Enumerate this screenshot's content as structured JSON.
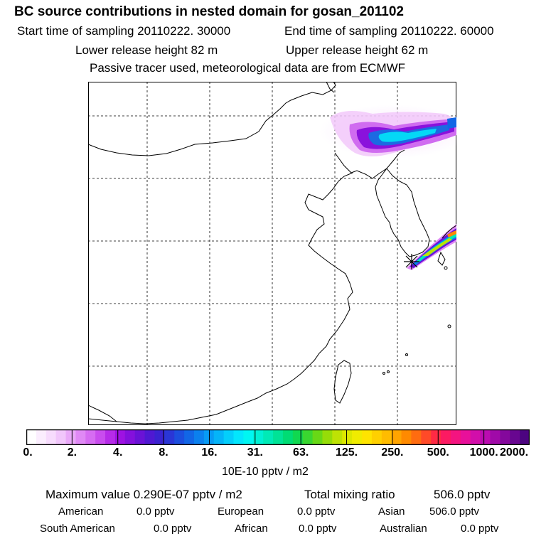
{
  "header": {
    "title": "BC  source contributions in nested domain for gosan_201102",
    "start_time": "Start time of sampling 20110222. 30000",
    "end_time": "End time of sampling 20110222. 60000",
    "lower_release": "Lower release height   82 m",
    "upper_release": "Upper release height   62 m",
    "tracer_note": "Passive tracer used, meteorological data are from ECMWF"
  },
  "colorbar": {
    "labels": [
      "0.",
      "2.",
      "4.",
      "8.",
      "16.",
      "31.",
      "63.",
      "125.",
      "250.",
      "500.",
      "1000.",
      "2000."
    ],
    "colors": [
      "#ffffff",
      "#fbeefe",
      "#f7dcfd",
      "#f1c6fb",
      "#e9a8f8",
      "#e089f5",
      "#d66cf2",
      "#c94cee",
      "#b62be8",
      "#9e12e2",
      "#8410dc",
      "#6a12d6",
      "#4f18d2",
      "#3a22d0",
      "#2a36d6",
      "#1c4ede",
      "#1266e6",
      "#0b80ee",
      "#079af4",
      "#05b4f8",
      "#04cefb",
      "#03e6fd",
      "#00f6f2",
      "#00f0d4",
      "#00eab6",
      "#00e396",
      "#00dc74",
      "#10d850",
      "#3ad630",
      "#68d816",
      "#96dc08",
      "#bee204",
      "#dce800",
      "#f0ec00",
      "#ffe400",
      "#ffd000",
      "#ffbc00",
      "#ffa400",
      "#ff8a00",
      "#ff6c10",
      "#ff4a28",
      "#ff2a44",
      "#fc1a62",
      "#f41480",
      "#e8109a",
      "#d20eaa",
      "#ba0cb0",
      "#a00aa8",
      "#84089c",
      "#680690",
      "#4c0480"
    ],
    "units": "10E-10 pptv / m2"
  },
  "summary": {
    "maximum_value": "Maximum value  0.290E-07 pptv / m2",
    "total_mixing": "Total mixing ratio",
    "total_mixing_value": "506.0 pptv",
    "american_label": "American",
    "american_value": "0.0 pptv",
    "european_label": "European",
    "european_value": "0.0 pptv",
    "asian_label": "Asian",
    "asian_value": "506.0 pptv",
    "south_american_label": "South American",
    "south_american_value": "0.0 pptv",
    "african_label": "African",
    "african_value": "0.0 pptv",
    "australian_label": "Australian",
    "australian_value": "0.0 pptv"
  }
}
